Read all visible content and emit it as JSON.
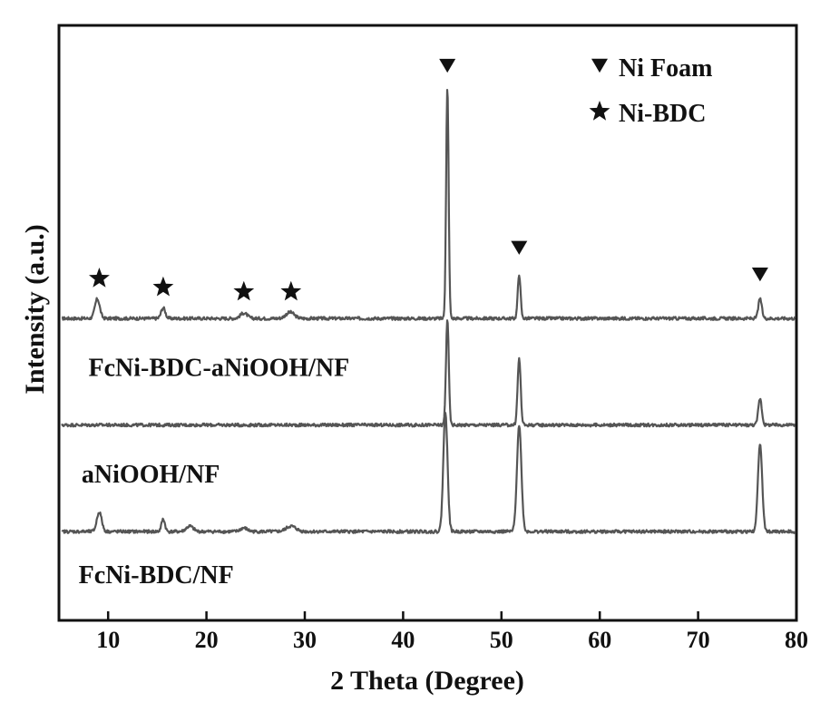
{
  "chart_data": {
    "type": "line",
    "xlabel": "2 Theta (Degree)",
    "ylabel": "Intensity (a.u.)",
    "xlim": [
      5,
      80
    ],
    "xticks": [
      10,
      20,
      30,
      40,
      50,
      60,
      70,
      80
    ],
    "grid": false,
    "legend": {
      "position": "top-right",
      "entries": [
        {
          "marker": "down-triangle",
          "label": "Ni Foam"
        },
        {
          "marker": "star",
          "label": "Ni-BDC"
        }
      ]
    },
    "series": [
      {
        "name": "FcNi-BDC-aNiOOH/NF",
        "baseline": 3.0,
        "peaks": [
          {
            "x": 8.9,
            "h": 0.22,
            "w": 0.35
          },
          {
            "x": 15.6,
            "h": 0.12,
            "w": 0.3
          },
          {
            "x": 23.8,
            "h": 0.06,
            "w": 0.5
          },
          {
            "x": 28.5,
            "h": 0.07,
            "w": 0.6
          },
          {
            "x": 44.5,
            "h": 2.6,
            "w": 0.18
          },
          {
            "x": 51.8,
            "h": 0.5,
            "w": 0.2
          },
          {
            "x": 76.3,
            "h": 0.22,
            "w": 0.25
          }
        ]
      },
      {
        "name": "aNiOOH/NF",
        "baseline": 1.8,
        "peaks": [
          {
            "x": 44.5,
            "h": 1.2,
            "w": 0.2
          },
          {
            "x": 51.8,
            "h": 0.75,
            "w": 0.22
          },
          {
            "x": 76.3,
            "h": 0.3,
            "w": 0.25
          }
        ]
      },
      {
        "name": "FcNi-BDC/NF",
        "baseline": 0.6,
        "peaks": [
          {
            "x": 9.1,
            "h": 0.22,
            "w": 0.35
          },
          {
            "x": 15.6,
            "h": 0.14,
            "w": 0.25
          },
          {
            "x": 18.3,
            "h": 0.06,
            "w": 0.5
          },
          {
            "x": 23.8,
            "h": 0.04,
            "w": 0.5
          },
          {
            "x": 28.6,
            "h": 0.06,
            "w": 0.7
          },
          {
            "x": 44.3,
            "h": 1.35,
            "w": 0.3
          },
          {
            "x": 51.8,
            "h": 1.2,
            "w": 0.32
          },
          {
            "x": 76.3,
            "h": 1.0,
            "w": 0.3
          }
        ]
      }
    ],
    "annotations": [
      {
        "marker": "star",
        "x": 9.1,
        "y": 3.45
      },
      {
        "marker": "star",
        "x": 15.6,
        "y": 3.35
      },
      {
        "marker": "star",
        "x": 23.8,
        "y": 3.3
      },
      {
        "marker": "star",
        "x": 28.6,
        "y": 3.3
      },
      {
        "marker": "down-triangle",
        "x": 44.5,
        "y": 5.85
      },
      {
        "marker": "down-triangle",
        "x": 51.8,
        "y": 3.8
      },
      {
        "marker": "down-triangle",
        "x": 76.3,
        "y": 3.5
      }
    ],
    "sample_labels": [
      {
        "text": "FcNi-BDC-aNiOOH/NF",
        "x": 8.0,
        "y": 2.35
      },
      {
        "text": "aNiOOH/NF",
        "x": 7.3,
        "y": 1.15
      },
      {
        "text": "FcNi-BDC/NF",
        "x": 7.0,
        "y": 0.02
      }
    ],
    "ylim": [
      -0.4,
      6.3
    ]
  }
}
